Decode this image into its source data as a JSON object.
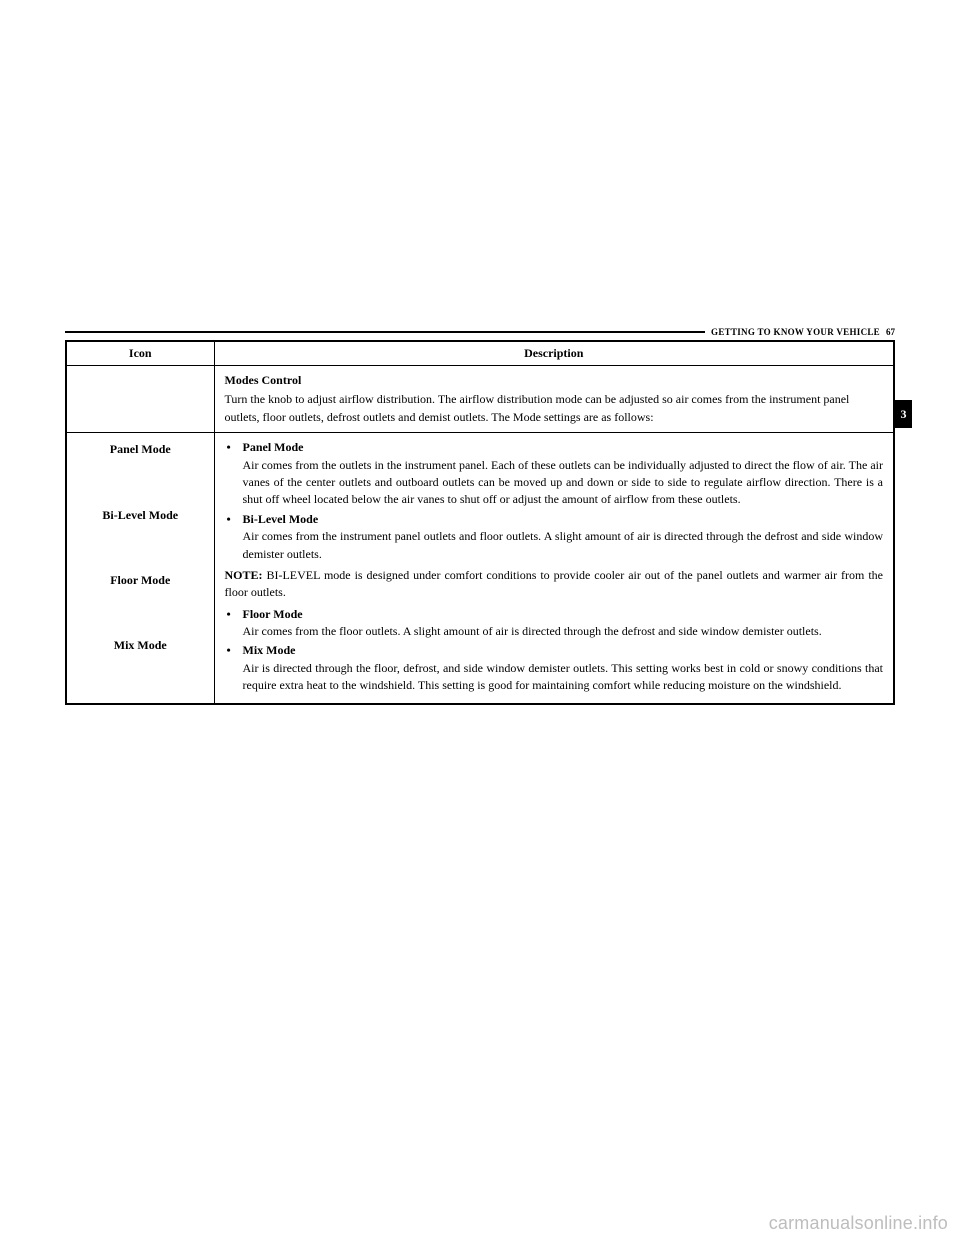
{
  "header": {
    "section": "GETTING TO KNOW YOUR VEHICLE",
    "page": "67"
  },
  "sideTab": "3",
  "table": {
    "columns": [
      "Icon",
      "Description"
    ],
    "row1": {
      "title": "Modes Control",
      "body": "Turn the knob to adjust airflow distribution. The airflow distribution mode can be adjusted so air comes from the instrument panel outlets, floor outlets, defrost outlets and demist outlets. The Mode settings are as follows:"
    },
    "row2": {
      "iconLabels": [
        "Panel Mode",
        "Bi-Level Mode",
        "Floor Mode",
        "Mix Mode"
      ],
      "items": [
        {
          "title": "Panel Mode",
          "body": "Air comes from the outlets in the instrument panel. Each of these outlets can be individually adjusted to direct the flow of air. The air vanes of the center outlets and outboard outlets can be moved up and down or side to side to regulate airflow direction. There is a shut off wheel located below the air vanes to shut off or adjust the amount of airflow from these outlets."
        },
        {
          "title": "Bi-Level Mode",
          "body": "Air comes from the instrument panel outlets and floor outlets. A slight amount of air is directed through the defrost and side window demister outlets."
        }
      ],
      "note": {
        "label": "NOTE:",
        "body": "BI-LEVEL mode is designed under comfort conditions to provide cooler air out of the panel outlets and warmer air from the floor outlets."
      },
      "items2": [
        {
          "title": "Floor Mode",
          "body": "Air comes from the floor outlets. A slight amount of air is directed through the defrost and side window demister outlets."
        },
        {
          "title": "Mix Mode",
          "body": "Air is directed through the floor, defrost, and side window demister outlets. This setting works best in cold or snowy conditions that require extra heat to the windshield. This setting is good for maintaining comfort while reducing moisture on the windshield."
        }
      ]
    }
  },
  "watermark": "carmanualsonline.info"
}
